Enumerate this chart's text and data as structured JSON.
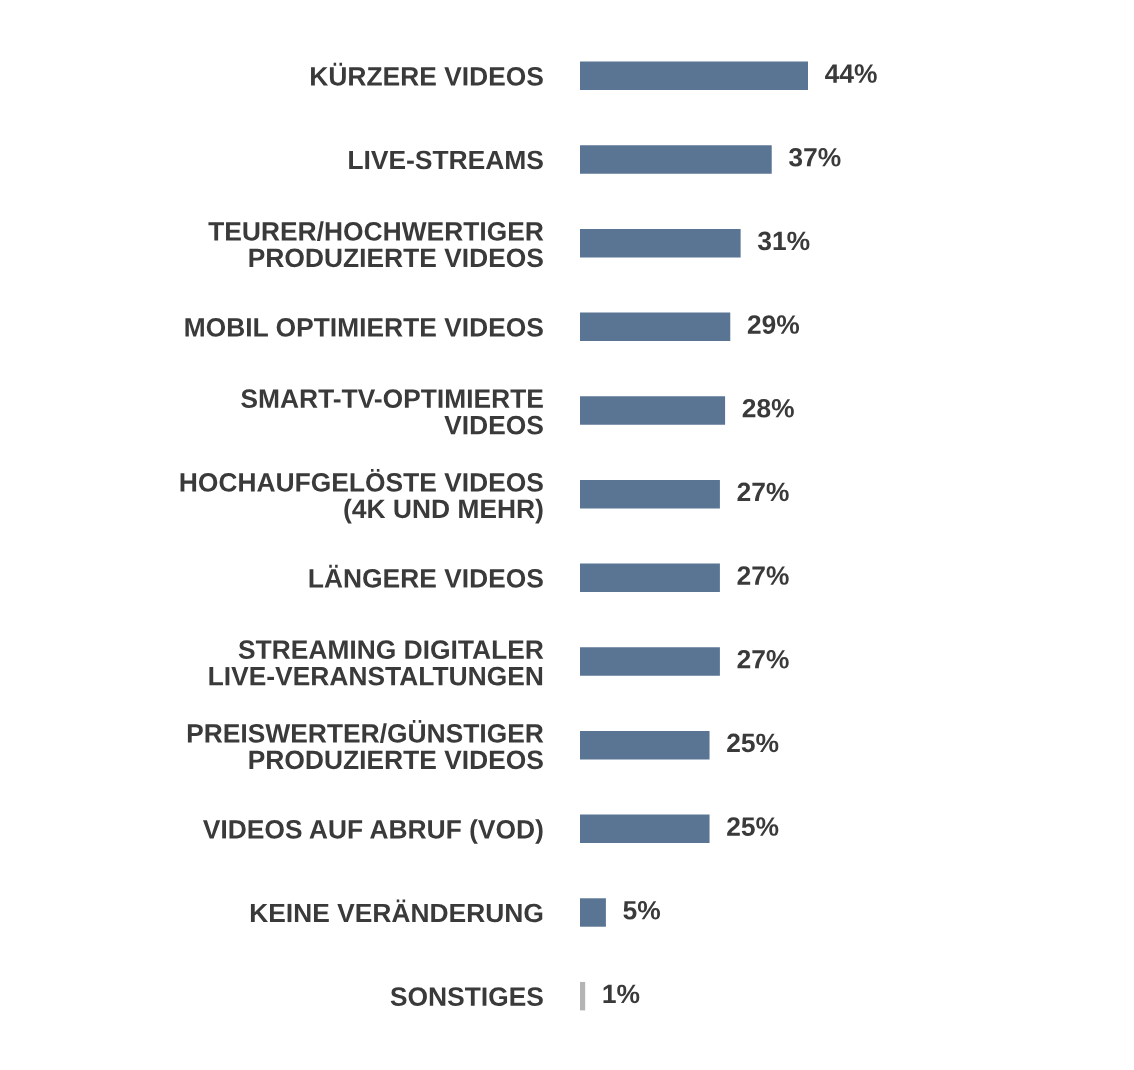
{
  "chart_data": {
    "type": "bar",
    "orientation": "horizontal",
    "tick_labels": "y",
    "categories": [
      "KÜRZERE VIDEOS",
      "LIVE-STREAMS",
      "TEURER/HOCHWERTIGER\nPRODUZIERTE VIDEOS",
      "MOBIL OPTIMIERTE VIDEOS",
      "SMART-TV-OPTIMIERTE\nVIDEOS",
      "HOCHAUFGELÖSTE VIDEOS\n(4K UND MEHR)",
      "LÄNGERE VIDEOS",
      "STREAMING DIGITALER\nLIVE-VERANSTALTUNGEN",
      "PREISWERTER/GÜNSTIGER\nPRODUZIERTE VIDEOS",
      "VIDEOS AUF ABRUF (VOD)",
      "KEINE VERÄNDERUNG",
      "SONSTIGES"
    ],
    "values": [
      44,
      37,
      31,
      29,
      28,
      27,
      27,
      27,
      25,
      25,
      5,
      1
    ],
    "value_labels": [
      "44%",
      "37%",
      "31%",
      "29%",
      "28%",
      "27%",
      "27%",
      "27%",
      "25%",
      "25%",
      "5%",
      "1%"
    ],
    "colors": [
      "#5a7594",
      "#5a7594",
      "#5a7594",
      "#5a7594",
      "#5a7594",
      "#5a7594",
      "#5a7594",
      "#5a7594",
      "#5a7594",
      "#5a7594",
      "#5a7594",
      "#b4b4b4"
    ],
    "grid": false,
    "legend": false
  }
}
